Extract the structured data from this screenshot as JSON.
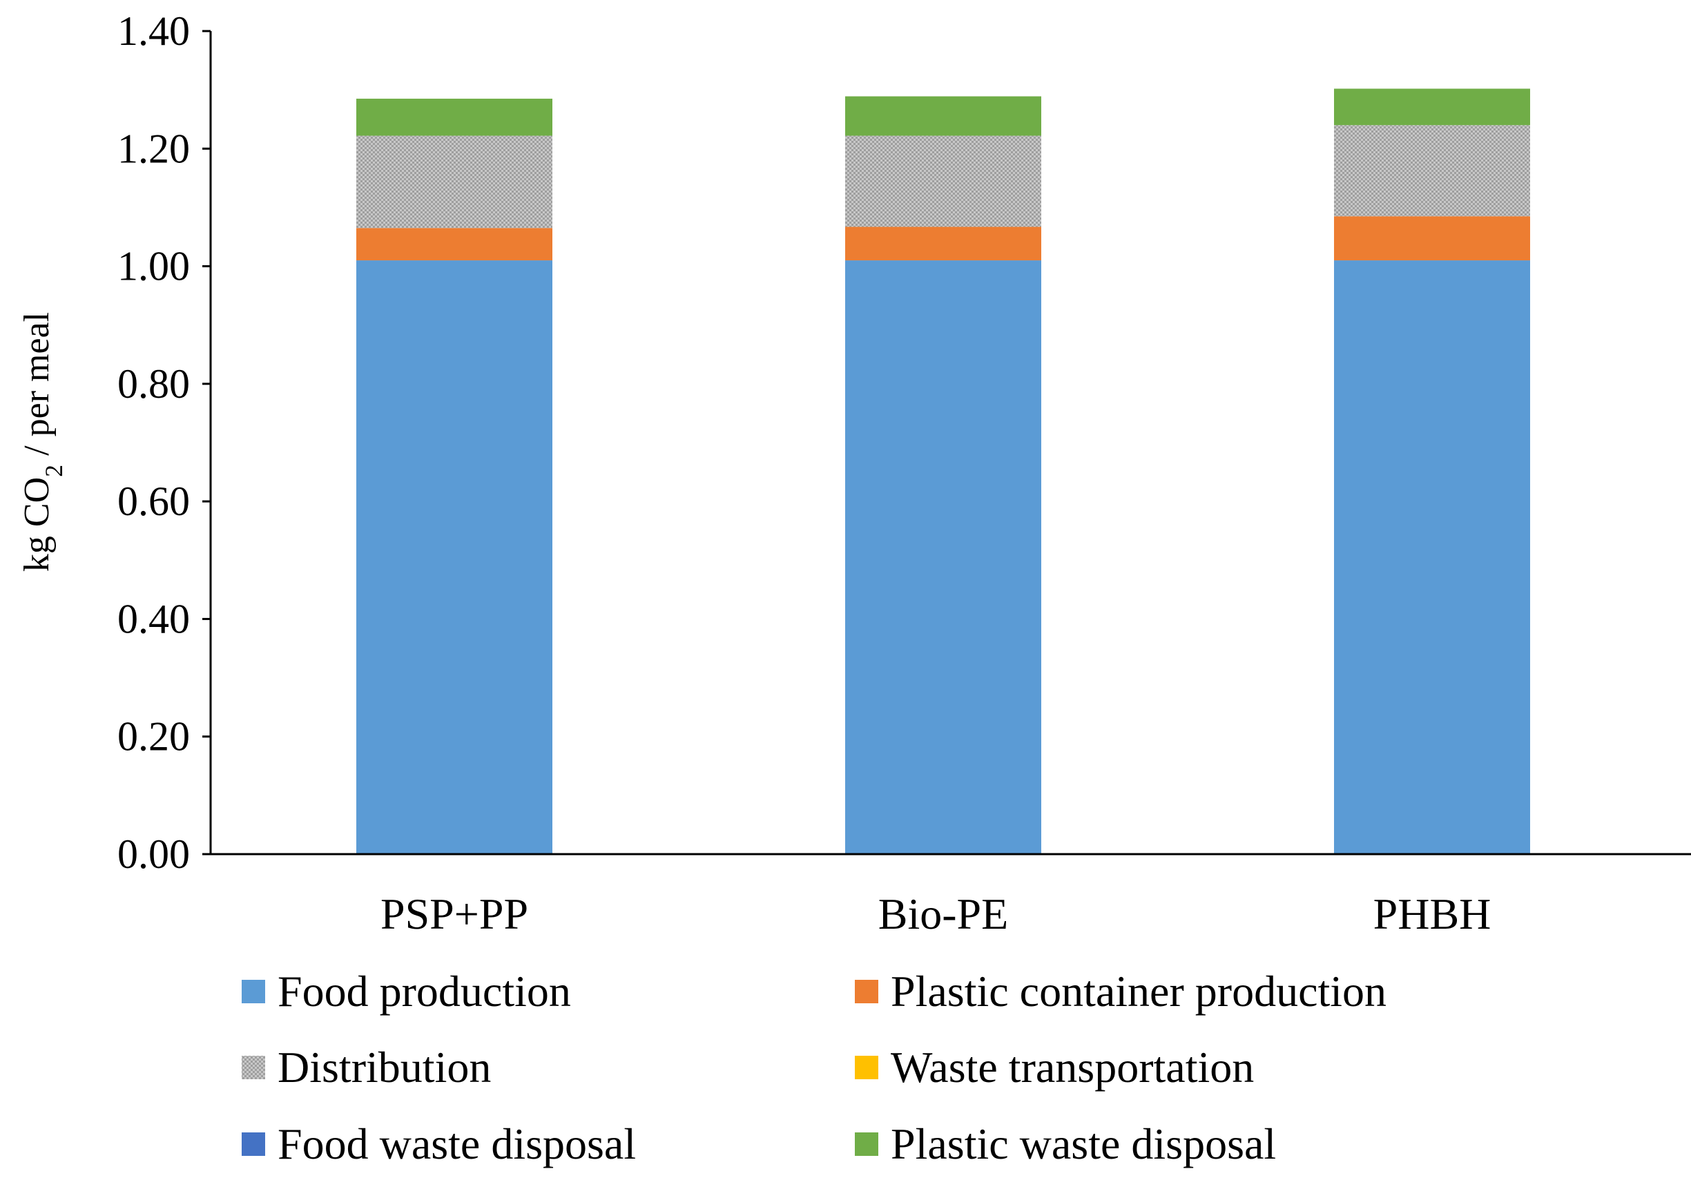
{
  "chart_data": {
    "type": "bar",
    "stacked": true,
    "title": "",
    "xlabel": "",
    "ylabel": {
      "prefix": "kg CO",
      "subscript": "2",
      "suffix": " / per meal"
    },
    "ylim": [
      0,
      1.4
    ],
    "yticks": [
      "0.00",
      "0.20",
      "0.40",
      "0.60",
      "0.80",
      "1.00",
      "1.20",
      "1.40"
    ],
    "grid": false,
    "legend_position": "bottom",
    "categories": [
      "PSP+PP",
      "Bio-PE",
      "PHBH"
    ],
    "series": [
      {
        "name": "Food production",
        "color": "#5B9BD5",
        "values": [
          1.01,
          1.01,
          1.01
        ]
      },
      {
        "name": "Plastic container production",
        "color": "#ED7D31",
        "values": [
          0.055,
          0.057,
          0.075
        ]
      },
      {
        "name": "Distribution",
        "color": "#A5A5A5",
        "pattern": "dotted",
        "values": [
          0.157,
          0.155,
          0.155
        ]
      },
      {
        "name": "Waste transportation",
        "color": "#FFC000",
        "values": [
          0.0,
          0.0,
          0.0
        ]
      },
      {
        "name": "Food waste disposal",
        "color": "#4472C4",
        "values": [
          0.0,
          0.0,
          0.0
        ]
      },
      {
        "name": "Plastic waste disposal",
        "color": "#70AD47",
        "values": [
          0.063,
          0.067,
          0.062
        ]
      }
    ]
  }
}
